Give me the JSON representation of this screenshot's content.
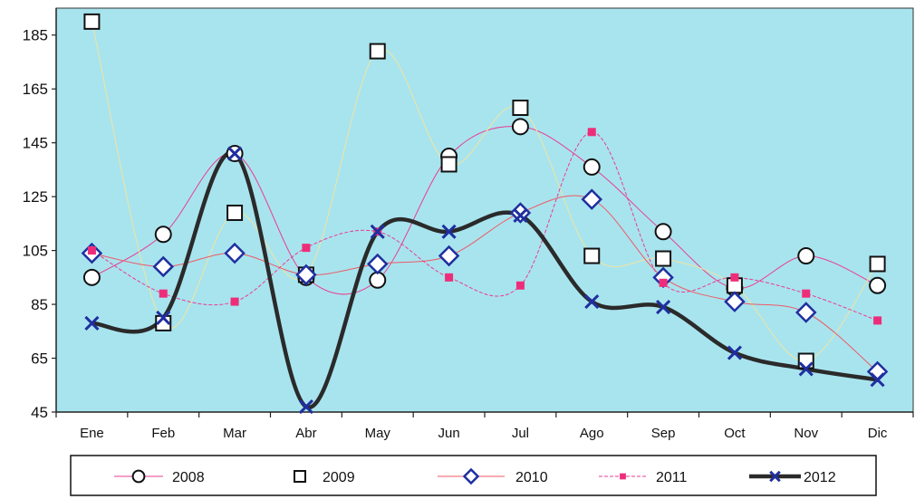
{
  "chart_data": {
    "type": "line",
    "title": "",
    "xlabel": "",
    "ylabel": "",
    "categories": [
      "Ene",
      "Feb",
      "Mar",
      "Abr",
      "May",
      "Jun",
      "Jul",
      "Ago",
      "Sep",
      "Oct",
      "Nov",
      "Dic"
    ],
    "ylim": [
      45,
      195
    ],
    "yticks": [
      45,
      65,
      85,
      105,
      125,
      145,
      165,
      185
    ],
    "grid": false,
    "legend": "bottom",
    "colors": {
      "plot_background": "#a8e4ee",
      "marker_2011": "#ee2d7a"
    },
    "series": [
      {
        "name": "2008",
        "marker": "circle",
        "color": "#ea3c90",
        "values": [
          95,
          111,
          141,
          95,
          94,
          140,
          151,
          136,
          112,
          91,
          103,
          92
        ]
      },
      {
        "name": "2009",
        "marker": "square",
        "color": "#f0e4a0",
        "values": [
          190,
          78,
          119,
          96,
          179,
          137,
          158,
          103,
          102,
          92,
          64,
          100
        ]
      },
      {
        "name": "2010",
        "marker": "diamond",
        "color": "#ee5a66",
        "values": [
          104,
          99,
          104,
          96,
          100,
          103,
          119,
          124,
          95,
          86,
          82,
          60
        ]
      },
      {
        "name": "2011",
        "marker": "filled-square",
        "color": "#ea3c90",
        "values": [
          105,
          89,
          86,
          106,
          112,
          95,
          92,
          149,
          93,
          95,
          89,
          79
        ]
      },
      {
        "name": "2012",
        "marker": "x",
        "color": "#2a2a2a",
        "values": [
          78,
          80,
          141,
          47,
          112,
          112,
          118,
          86,
          84,
          67,
          61,
          57
        ]
      }
    ]
  }
}
